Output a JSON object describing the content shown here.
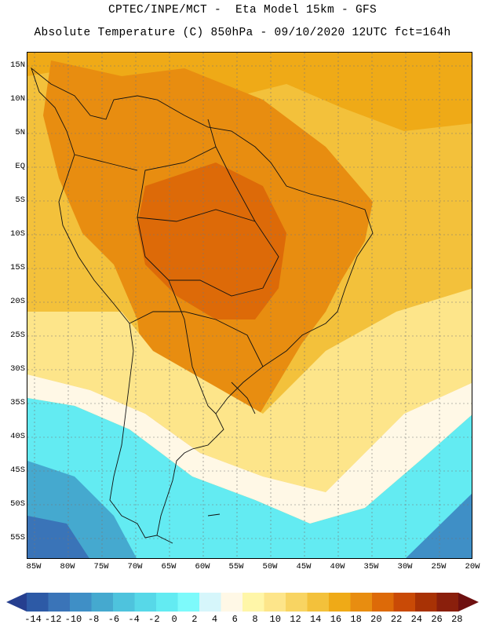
{
  "header": {
    "line1": "CPTEC/INPE/MCT -  Eta Model 15km - GFS",
    "line2": "Absolute Temperature (C) 850hPa - 09/10/2020 12UTC fct=164h"
  },
  "map": {
    "lat_labels": [
      "15N",
      "10N",
      "5N",
      "EQ",
      "5S",
      "10S",
      "15S",
      "20S",
      "25S",
      "30S",
      "35S",
      "40S",
      "45S",
      "50S",
      "55S"
    ],
    "lon_labels": [
      "85W",
      "80W",
      "75W",
      "70W",
      "65W",
      "60W",
      "55W",
      "50W",
      "45W",
      "40W",
      "35W",
      "30W",
      "25W",
      "20W"
    ]
  },
  "colorbar": {
    "labels": [
      "-14",
      "-12",
      "-10",
      "-8",
      "-6",
      "-4",
      "-2",
      "0",
      "2",
      "4",
      "6",
      "8",
      "10",
      "12",
      "14",
      "16",
      "18",
      "20",
      "22",
      "24",
      "26",
      "28"
    ],
    "colors": [
      "#263f8f",
      "#2d5aa6",
      "#3a74b8",
      "#3f8fc6",
      "#45a9cf",
      "#4ec3dd",
      "#57d8e8",
      "#63ebf2",
      "#7dfafb",
      "#d6f6fb",
      "#fff8e6",
      "#fff6a8",
      "#fde58a",
      "#f8d462",
      "#f3c13b",
      "#efaa17",
      "#e88d10",
      "#dd6a08",
      "#c94a06",
      "#a83205",
      "#8a1f0c",
      "#6e1010"
    ]
  }
}
